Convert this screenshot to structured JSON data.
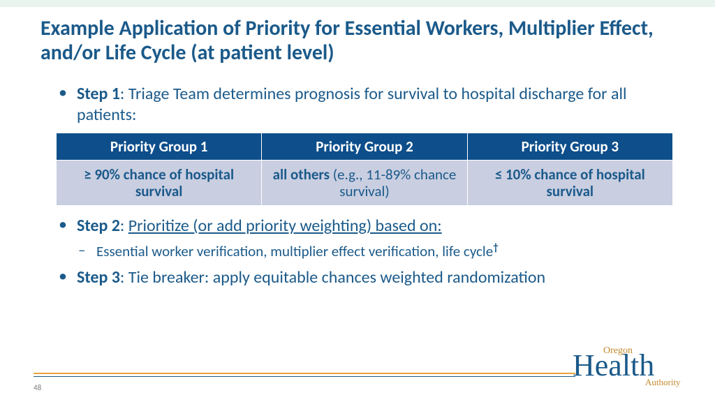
{
  "colors": {
    "title": "#1b5a8a",
    "body": "#1b5a8a",
    "table_header_bg": "#0d4e8b",
    "table_header_text": "#ffffff",
    "table_row_bg": "#c9cee1",
    "table_row_text": "#1b5a8a",
    "topbar_bg": "#eaf4ef",
    "rule": "#e8a33d",
    "rule2": "#1b5a8a",
    "pagenum": "#7a7a7a",
    "logo_text": "#1b5a8a",
    "logo_accent": "#c28a2a"
  },
  "fonts": {
    "title_size": 30,
    "body_size": 24,
    "sub_size": 21,
    "table_header_size": 21,
    "table_cell_size": 21
  },
  "title": "Example Application of Priority for Essential Workers, Multiplier Effect, and/or Life Cycle (at patient level)",
  "steps": {
    "s1": {
      "label": "Step 1",
      "text": ": Triage Team determines prognosis for survival to hospital discharge for all patients:"
    },
    "s2": {
      "label": "Step 2",
      "text": ": ",
      "underlined": "Prioritize (or add priority weighting) based on:"
    },
    "s2_sub": "Essential worker verification, multiplier effect verification, life cycle",
    "s2_sup": "†",
    "s3": {
      "label": "Step 3",
      "text": ": Tie breaker: apply equitable chances weighted randomization"
    }
  },
  "table": {
    "headers": [
      "Priority Group 1",
      "Priority Group 2",
      "Priority Group 3"
    ],
    "row": [
      {
        "bold": "≥ 90% chance of hospital survival",
        "rest": ""
      },
      {
        "bold": "all others",
        "rest": " (e.g., 11-89% chance survival)"
      },
      {
        "bold": "≤ 10% chance of hospital survival",
        "rest": ""
      }
    ]
  },
  "page_number": "48",
  "logo": {
    "main": "Health",
    "top": "Oregon",
    "sub": "Authority"
  }
}
